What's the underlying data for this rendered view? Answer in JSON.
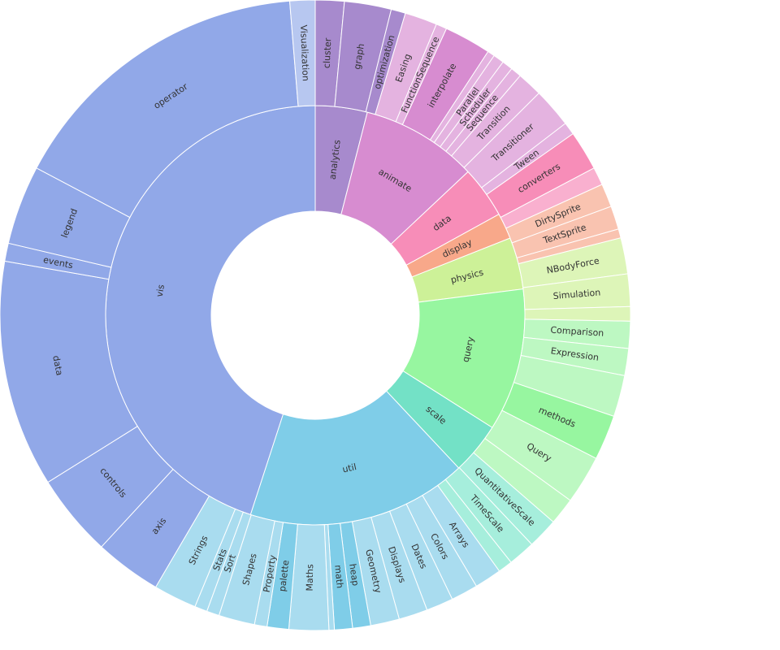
{
  "chart_data": {
    "type": "sunburst",
    "title": "",
    "rings": [
      [
        {
          "label": "analytics",
          "value": 4,
          "color": "#A78ACD"
        },
        {
          "label": "animate",
          "value": 9,
          "color": "#D78CD0"
        },
        {
          "label": "data",
          "value": 4,
          "color": "#F78DB8"
        },
        {
          "label": "display",
          "value": 2,
          "color": "#F8A88A"
        },
        {
          "label": "physics",
          "value": 4,
          "color": "#CDF198"
        },
        {
          "label": "query",
          "value": 11,
          "color": "#97F6A0"
        },
        {
          "label": "scale",
          "value": 4,
          "color": "#73E1C6"
        },
        {
          "label": "util",
          "value": 17,
          "color": "#7FCDE8"
        },
        {
          "label": "vis",
          "value": 45,
          "color": "#91A8E8"
        }
      ],
      [
        {
          "label": "cluster",
          "value": 1.6,
          "color": "#A78ACD"
        },
        {
          "label": "graph",
          "value": 2.6,
          "color": "#A78ACD"
        },
        {
          "label": "optimization",
          "value": 0.8,
          "color": "#A78ACD"
        },
        {
          "label": "Easing",
          "value": 1.8,
          "color": "#E4B3E0"
        },
        {
          "label": "FunctionSequence",
          "value": 0.6,
          "color": "#E4B3E0"
        },
        {
          "label": "interpolate",
          "value": 2.6,
          "color": "#D78CD0"
        },
        {
          "label": "",
          "value": 0.4,
          "color": "#E4B3E0"
        },
        {
          "label": "Parallel",
          "value": 0.6,
          "color": "#E4B3E0"
        },
        {
          "label": "Scheduler",
          "value": 0.6,
          "color": "#E4B3E0"
        },
        {
          "label": "Sequence",
          "value": 0.6,
          "color": "#E4B3E0"
        },
        {
          "label": "Transition",
          "value": 1.4,
          "color": "#E4B3E0"
        },
        {
          "label": "Transitioner",
          "value": 2.2,
          "color": "#E4B3E0"
        },
        {
          "label": "Tween",
          "value": 0.7,
          "color": "#E4B3E0"
        },
        {
          "label": "converters",
          "value": 2.2,
          "color": "#F78DB8"
        },
        {
          "label": "",
          "value": 1.0,
          "color": "#F9B0CF"
        },
        {
          "label": "DirtySprite",
          "value": 1.3,
          "color": "#F9C3B0"
        },
        {
          "label": "TextSprite",
          "value": 1.3,
          "color": "#F9C3B0"
        },
        {
          "label": "",
          "value": 0.5,
          "color": "#F9C3B0"
        },
        {
          "label": "NBodyForce",
          "value": 2.0,
          "color": "#DDF5B8"
        },
        {
          "label": "Simulation",
          "value": 1.8,
          "color": "#DDF5B8"
        },
        {
          "label": "",
          "value": 0.8,
          "color": "#DDF5B8"
        },
        {
          "label": "Comparison",
          "value": 1.5,
          "color": "#BDF8C2"
        },
        {
          "label": "Expression",
          "value": 1.5,
          "color": "#BDF8C2"
        },
        {
          "label": "",
          "value": 2.3,
          "color": "#BDF8C2"
        },
        {
          "label": "methods",
          "value": 2.5,
          "color": "#97F6A0"
        },
        {
          "label": "Query",
          "value": 2.7,
          "color": "#BDF8C2"
        },
        {
          "label": "",
          "value": 1.5,
          "color": "#BDF8C2"
        },
        {
          "label": "QuantitativeScale",
          "value": 1.7,
          "color": "#A6EEDC"
        },
        {
          "label": "TimeScale",
          "value": 1.5,
          "color": "#A6EEDC"
        },
        {
          "label": "",
          "value": 0.8,
          "color": "#A6EEDC"
        },
        {
          "label": "Arrays",
          "value": 1.5,
          "color": "#A9DCEF"
        },
        {
          "label": "Colors",
          "value": 1.5,
          "color": "#A9DCEF"
        },
        {
          "label": "Dates",
          "value": 1.5,
          "color": "#A9DCEF"
        },
        {
          "label": "Displays",
          "value": 1.6,
          "color": "#A9DCEF"
        },
        {
          "label": "Geometry",
          "value": 1.6,
          "color": "#A9DCEF"
        },
        {
          "label": "heap",
          "value": 1.0,
          "color": "#7FCDE8"
        },
        {
          "label": "math",
          "value": 1.0,
          "color": "#7FCDE8"
        },
        {
          "label": "",
          "value": 0.3,
          "color": "#A9DCEF"
        },
        {
          "label": "Maths",
          "value": 2.2,
          "color": "#A9DCEF"
        },
        {
          "label": "palette",
          "value": 1.2,
          "color": "#7FCDE8"
        },
        {
          "label": "Property",
          "value": 0.7,
          "color": "#A9DCEF"
        },
        {
          "label": "Shapes",
          "value": 2.0,
          "color": "#A9DCEF"
        },
        {
          "label": "Sort",
          "value": 0.7,
          "color": "#A9DCEF"
        },
        {
          "label": "Stats",
          "value": 0.7,
          "color": "#A9DCEF"
        },
        {
          "label": "Strings",
          "value": 2.4,
          "color": "#A9DCEF"
        },
        {
          "label": "axis",
          "value": 3.7,
          "color": "#91A8E8"
        },
        {
          "label": "controls",
          "value": 4.6,
          "color": "#91A8E8"
        },
        {
          "label": "data",
          "value": 12.6,
          "color": "#91A8E8"
        },
        {
          "label": "events",
          "value": 1.0,
          "color": "#91A8E8"
        },
        {
          "label": "legend",
          "value": 4.4,
          "color": "#91A8E8"
        },
        {
          "label": "operator",
          "value": 17.3,
          "color": "#91A8E8"
        },
        {
          "label": "Visualization",
          "value": 1.4,
          "color": "#B7C7F0"
        }
      ]
    ]
  }
}
